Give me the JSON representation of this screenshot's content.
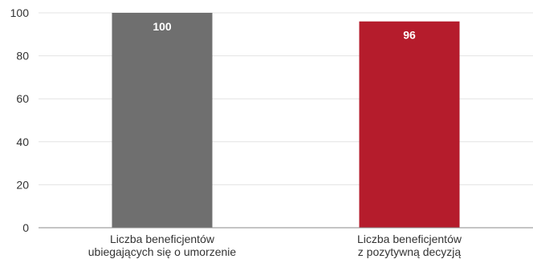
{
  "chart_data": {
    "type": "bar",
    "categories": [
      [
        "Liczba beneficjentów",
        "ubiegających się o umorzenie"
      ],
      [
        "Liczba beneficjentów",
        "z pozytywną decyzją"
      ]
    ],
    "values": [
      100,
      96
    ],
    "data_labels": [
      "100",
      "96"
    ],
    "bar_colors": [
      "#6f6f6f",
      "#b51c2c"
    ],
    "ylim": [
      0,
      100
    ],
    "yticks": [
      0,
      20,
      40,
      60,
      80,
      100
    ],
    "grid": true,
    "title": "",
    "xlabel": "",
    "ylabel": ""
  }
}
